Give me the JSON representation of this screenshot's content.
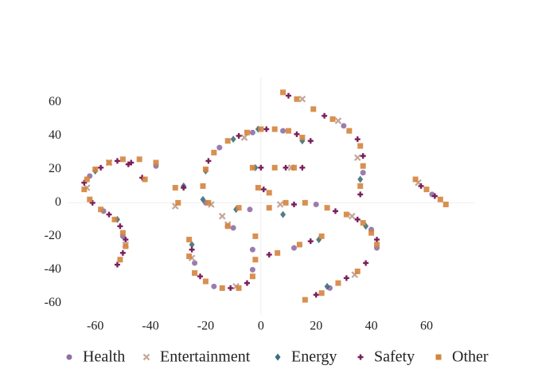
{
  "chart_data": {
    "type": "scatter",
    "xlim": [
      -70,
      77.6
    ],
    "ylim": [
      -67,
      75
    ],
    "xticks": [
      -60,
      -40,
      -20,
      0,
      20,
      40,
      60
    ],
    "yticks": [
      -60,
      -40,
      -20,
      0,
      20,
      40,
      60
    ],
    "zero_lines": true,
    "legend": "bottom",
    "series": [
      {
        "name": "Health",
        "color": "#8f6fa5",
        "symbol": "circle",
        "x": [
          -62,
          -57,
          -50,
          -38,
          -15,
          -4,
          -3,
          8,
          -10,
          -24,
          -17,
          -3,
          -3,
          20,
          40,
          42,
          12,
          30,
          37,
          25,
          62,
          -20
        ],
        "y": [
          16,
          -5,
          -20,
          22,
          33,
          -4,
          42,
          43,
          -15,
          -36,
          -50,
          -40,
          -28,
          -1,
          -16,
          -27,
          -27,
          46,
          18,
          -51,
          5,
          0
        ]
      },
      {
        "name": "Entertainment",
        "color": "#c4a696",
        "symbol": "x",
        "x": [
          -63,
          -55,
          -49,
          -31,
          -18,
          -14,
          -12,
          -6,
          11,
          -25,
          -9,
          7,
          33,
          28,
          35,
          34,
          57,
          15
        ],
        "y": [
          9,
          24,
          -25,
          -2,
          -1,
          -8,
          -13,
          39,
          21,
          -33,
          -50,
          -1,
          -8,
          49,
          27,
          -43,
          12,
          62
        ]
      },
      {
        "name": "Energy",
        "color": "#3d6f7b",
        "symbol": "diamond",
        "x": [
          -60,
          -52,
          -28,
          -21,
          -20,
          -10,
          -1,
          15,
          -2,
          -9,
          -25,
          8,
          21,
          38,
          36,
          24
        ],
        "y": [
          19,
          -10,
          10,
          2,
          19,
          38,
          44,
          37,
          21,
          -4,
          -25,
          -7,
          -22,
          -14,
          14,
          -50
        ]
      },
      {
        "name": "Safety",
        "color": "#7a1f5c",
        "symbol": "cross",
        "x": [
          -47,
          -52,
          -58,
          -64,
          -61,
          -55,
          -51,
          -49,
          -50,
          -52,
          -48,
          -43,
          -28,
          -19,
          -8,
          2,
          13,
          18,
          0,
          9,
          15,
          1,
          -25,
          -22,
          -11,
          -5,
          12,
          27,
          35,
          42,
          3,
          18,
          10,
          23,
          35,
          37,
          36,
          20,
          31,
          38,
          58,
          63
        ],
        "y": [
          24,
          25,
          21,
          12,
          0,
          -7,
          -14,
          -22,
          -30,
          -37,
          23,
          15,
          9,
          25,
          40,
          44,
          41,
          37,
          21,
          21,
          21,
          8,
          -28,
          -44,
          -51,
          -48,
          -1,
          -5,
          -10,
          -22,
          -31,
          -23,
          64,
          52,
          38,
          28,
          5,
          -55,
          -45,
          -36,
          10,
          4
        ]
      },
      {
        "name": "Other",
        "color": "#d4843e",
        "symbol": "square",
        "x": [
          -38,
          -44,
          -50,
          -55,
          -60,
          -63,
          -64,
          -62,
          -58,
          -53,
          -50,
          -49,
          -51,
          -42,
          -31,
          -30,
          -21,
          -20,
          -17,
          -12,
          -5,
          0,
          5,
          10,
          15,
          -3,
          5,
          12,
          -1,
          3,
          -19,
          -12,
          -8,
          -26,
          -26,
          -24,
          -20,
          -14,
          -8,
          -3,
          -2,
          -2,
          3,
          9,
          16,
          24,
          31,
          37,
          40,
          42,
          6,
          14,
          22,
          8,
          13,
          19,
          26,
          32,
          36,
          37,
          36,
          16,
          22,
          28,
          35,
          56,
          60,
          65,
          67
        ],
        "y": [
          24,
          26,
          26,
          24,
          20,
          14,
          8,
          2,
          -4,
          -10,
          -18,
          -26,
          -34,
          14,
          9,
          0,
          10,
          20,
          30,
          37,
          42,
          44,
          44,
          43,
          39,
          21,
          21,
          21,
          9,
          6,
          0,
          -14,
          -3,
          -22,
          -32,
          -42,
          -47,
          -51,
          -51,
          -44,
          -34,
          -20,
          -3,
          0,
          0,
          -3,
          -7,
          -12,
          -18,
          -25,
          -30,
          -25,
          -20,
          66,
          62,
          56,
          50,
          43,
          34,
          22,
          10,
          -58,
          -54,
          -48,
          -41,
          14,
          8,
          2,
          -1
        ]
      }
    ]
  }
}
